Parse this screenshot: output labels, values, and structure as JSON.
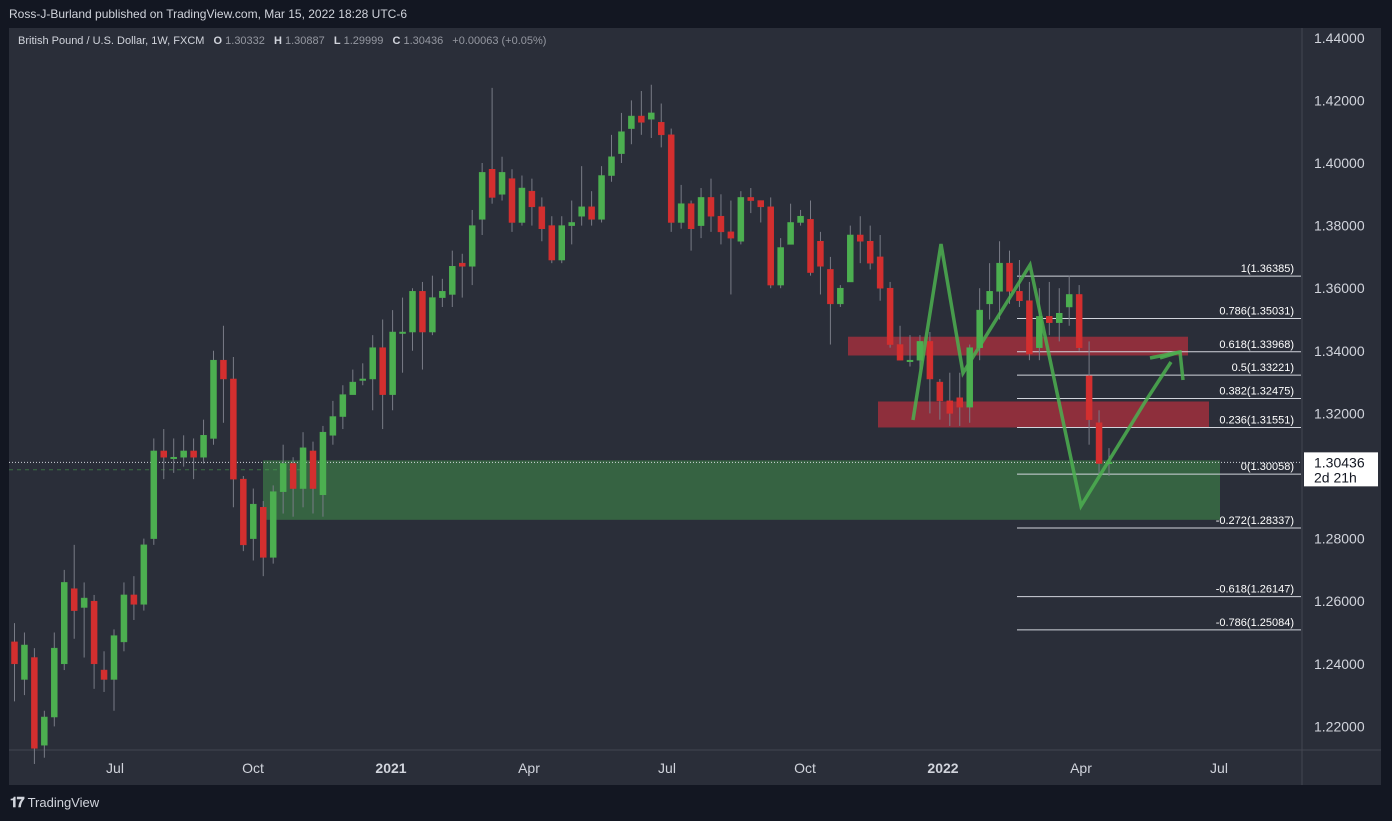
{
  "header": {
    "published": "Ross-J-Burland published on TradingView.com, Mar 15, 2022 18:28 UTC-6"
  },
  "legend": {
    "symbol": "British Pound / U.S. Dollar, 1W, FXCM",
    "o_label": "O",
    "o": "1.30332",
    "h_label": "H",
    "h": "1.30887",
    "l_label": "L",
    "l": "1.29999",
    "c_label": "C",
    "c": "1.30436",
    "change": "+0.00063 (+0.05%)"
  },
  "price_tag": {
    "value": "1.30436",
    "countdown": "2d 21h",
    "level": "1.30000"
  },
  "footer": {
    "brand": "TradingView"
  },
  "colors": {
    "up": "#4caf50",
    "down": "#d32f2f",
    "bg": "#2a2e39",
    "outer": "#131722",
    "arrow": "#4caf50",
    "zone_red": "#e0313f",
    "zone_green": "#3f8f4a"
  },
  "chart_data": {
    "type": "candlestick",
    "ylim": [
      1.21,
      1.445
    ],
    "y_ticks": [
      "1.22000",
      "1.24000",
      "1.26000",
      "1.28000",
      "1.30000",
      "1.32000",
      "1.34000",
      "1.36000",
      "1.38000",
      "1.40000",
      "1.42000",
      "1.44000"
    ],
    "x_ticks": [
      "Jul",
      "Oct",
      "2021",
      "Apr",
      "Jul",
      "Oct",
      "2022",
      "Apr",
      "Jul"
    ],
    "fib_levels": [
      {
        "label": "1(1.36385)",
        "value": 1.36385
      },
      {
        "label": "0.786(1.35031)",
        "value": 1.35031
      },
      {
        "label": "0.618(1.33968)",
        "value": 1.33968
      },
      {
        "label": "0.5(1.33221)",
        "value": 1.33221
      },
      {
        "label": "0.382(1.32475)",
        "value": 1.32475
      },
      {
        "label": "0.236(1.31551)",
        "value": 1.31551
      },
      {
        "label": "0(1.30058)",
        "value": 1.30058
      },
      {
        "label": "-0.272(1.28337)",
        "value": 1.28337
      },
      {
        "label": "-0.618(1.26147)",
        "value": 1.26147
      },
      {
        "label": "-0.786(1.25084)",
        "value": 1.25084
      }
    ],
    "zones": [
      {
        "name": "upper-resistance",
        "from": 1.3385,
        "to": 1.3445,
        "color": "red"
      },
      {
        "name": "lower-resistance",
        "from": 1.3155,
        "to": 1.3238,
        "color": "red"
      },
      {
        "name": "support",
        "from": 1.286,
        "to": 1.305,
        "color": "green"
      }
    ],
    "candles": [
      [
        1.247,
        1.24,
        1.228,
        1.253
      ],
      [
        1.235,
        1.246,
        1.23,
        1.25
      ],
      [
        1.242,
        1.213,
        1.208,
        1.245
      ],
      [
        1.214,
        1.223,
        1.21,
        1.225
      ],
      [
        1.223,
        1.245,
        1.22,
        1.25
      ],
      [
        1.24,
        1.266,
        1.238,
        1.27
      ],
      [
        1.264,
        1.257,
        1.248,
        1.278
      ],
      [
        1.258,
        1.261,
        1.242,
        1.266
      ],
      [
        1.26,
        1.24,
        1.232,
        1.262
      ],
      [
        1.238,
        1.235,
        1.231,
        1.244
      ],
      [
        1.235,
        1.249,
        1.225,
        1.251
      ],
      [
        1.247,
        1.262,
        1.244,
        1.266
      ],
      [
        1.262,
        1.259,
        1.254,
        1.268
      ],
      [
        1.259,
        1.278,
        1.257,
        1.28
      ],
      [
        1.28,
        1.308,
        1.278,
        1.312
      ],
      [
        1.308,
        1.306,
        1.299,
        1.315
      ],
      [
        1.306,
        1.306,
        1.301,
        1.312
      ],
      [
        1.306,
        1.308,
        1.303,
        1.313
      ],
      [
        1.308,
        1.306,
        1.299,
        1.312
      ],
      [
        1.306,
        1.313,
        1.304,
        1.318
      ],
      [
        1.312,
        1.337,
        1.31,
        1.34
      ],
      [
        1.337,
        1.331,
        1.317,
        1.348
      ],
      [
        1.331,
        1.299,
        1.29,
        1.338
      ],
      [
        1.299,
        1.278,
        1.276,
        1.3
      ],
      [
        1.28,
        1.291,
        1.273,
        1.296
      ],
      [
        1.29,
        1.274,
        1.268,
        1.292
      ],
      [
        1.274,
        1.295,
        1.272,
        1.297
      ],
      [
        1.295,
        1.304,
        1.288,
        1.31
      ],
      [
        1.304,
        1.296,
        1.287,
        1.306
      ],
      [
        1.296,
        1.309,
        1.29,
        1.314
      ],
      [
        1.308,
        1.296,
        1.288,
        1.311
      ],
      [
        1.294,
        1.314,
        1.287,
        1.316
      ],
      [
        1.313,
        1.319,
        1.31,
        1.324
      ],
      [
        1.319,
        1.326,
        1.315,
        1.329
      ],
      [
        1.326,
        1.33,
        1.326,
        1.334
      ],
      [
        1.331,
        1.331,
        1.329,
        1.336
      ],
      [
        1.331,
        1.341,
        1.321,
        1.345
      ],
      [
        1.341,
        1.326,
        1.315,
        1.35
      ],
      [
        1.326,
        1.346,
        1.321,
        1.353
      ],
      [
        1.346,
        1.346,
        1.333,
        1.357
      ],
      [
        1.346,
        1.359,
        1.34,
        1.36
      ],
      [
        1.359,
        1.346,
        1.334,
        1.362
      ],
      [
        1.346,
        1.357,
        1.345,
        1.364
      ],
      [
        1.357,
        1.359,
        1.354,
        1.363
      ],
      [
        1.358,
        1.367,
        1.354,
        1.372
      ],
      [
        1.368,
        1.367,
        1.357,
        1.371
      ],
      [
        1.367,
        1.38,
        1.361,
        1.385
      ],
      [
        1.382,
        1.397,
        1.377,
        1.4
      ],
      [
        1.398,
        1.389,
        1.387,
        1.424
      ],
      [
        1.39,
        1.397,
        1.388,
        1.402
      ],
      [
        1.395,
        1.381,
        1.378,
        1.398
      ],
      [
        1.381,
        1.392,
        1.38,
        1.396
      ],
      [
        1.391,
        1.386,
        1.38,
        1.395
      ],
      [
        1.386,
        1.379,
        1.375,
        1.389
      ],
      [
        1.38,
        1.369,
        1.368,
        1.383
      ],
      [
        1.369,
        1.38,
        1.368,
        1.383
      ],
      [
        1.38,
        1.381,
        1.374,
        1.388
      ],
      [
        1.383,
        1.386,
        1.38,
        1.399
      ],
      [
        1.386,
        1.382,
        1.38,
        1.391
      ],
      [
        1.382,
        1.396,
        1.381,
        1.399
      ],
      [
        1.396,
        1.402,
        1.394,
        1.409
      ],
      [
        1.403,
        1.41,
        1.4,
        1.416
      ],
      [
        1.411,
        1.415,
        1.406,
        1.42
      ],
      [
        1.415,
        1.413,
        1.409,
        1.423
      ],
      [
        1.414,
        1.416,
        1.408,
        1.425
      ],
      [
        1.413,
        1.409,
        1.405,
        1.419
      ],
      [
        1.409,
        1.381,
        1.378,
        1.411
      ],
      [
        1.381,
        1.387,
        1.379,
        1.393
      ],
      [
        1.387,
        1.379,
        1.372,
        1.388
      ],
      [
        1.38,
        1.389,
        1.376,
        1.392
      ],
      [
        1.389,
        1.383,
        1.378,
        1.395
      ],
      [
        1.383,
        1.378,
        1.374,
        1.39
      ],
      [
        1.378,
        1.376,
        1.358,
        1.388
      ],
      [
        1.375,
        1.389,
        1.374,
        1.391
      ],
      [
        1.389,
        1.388,
        1.384,
        1.392
      ],
      [
        1.388,
        1.386,
        1.381,
        1.388
      ],
      [
        1.386,
        1.361,
        1.36,
        1.389
      ],
      [
        1.361,
        1.373,
        1.36,
        1.376
      ],
      [
        1.374,
        1.381,
        1.374,
        1.387
      ],
      [
        1.381,
        1.383,
        1.38,
        1.385
      ],
      [
        1.382,
        1.365,
        1.364,
        1.388
      ],
      [
        1.375,
        1.367,
        1.358,
        1.378
      ],
      [
        1.366,
        1.355,
        1.342,
        1.37
      ],
      [
        1.355,
        1.36,
        1.354,
        1.361
      ],
      [
        1.362,
        1.377,
        1.362,
        1.38
      ],
      [
        1.377,
        1.375,
        1.368,
        1.383
      ],
      [
        1.375,
        1.368,
        1.366,
        1.38
      ],
      [
        1.37,
        1.36,
        1.356,
        1.377
      ],
      [
        1.36,
        1.342,
        1.341,
        1.362
      ],
      [
        1.342,
        1.337,
        1.337,
        1.348
      ],
      [
        1.337,
        1.337,
        1.335,
        1.345
      ],
      [
        1.337,
        1.343,
        1.334,
        1.345
      ],
      [
        1.343,
        1.331,
        1.32,
        1.346
      ],
      [
        1.33,
        1.324,
        1.318,
        1.331
      ],
      [
        1.324,
        1.32,
        1.316,
        1.333
      ],
      [
        1.325,
        1.322,
        1.316,
        1.333
      ],
      [
        1.322,
        1.341,
        1.317,
        1.342
      ],
      [
        1.341,
        1.353,
        1.337,
        1.36
      ],
      [
        1.355,
        1.359,
        1.35,
        1.368
      ],
      [
        1.359,
        1.368,
        1.35,
        1.375
      ],
      [
        1.368,
        1.359,
        1.355,
        1.372
      ],
      [
        1.359,
        1.356,
        1.354,
        1.369
      ],
      [
        1.356,
        1.339,
        1.337,
        1.362
      ],
      [
        1.341,
        1.351,
        1.337,
        1.36
      ],
      [
        1.351,
        1.349,
        1.345,
        1.362
      ],
      [
        1.349,
        1.352,
        1.343,
        1.36
      ],
      [
        1.354,
        1.358,
        1.348,
        1.364
      ],
      [
        1.358,
        1.341,
        1.34,
        1.361
      ],
      [
        1.332,
        1.318,
        1.31,
        1.343
      ],
      [
        1.317,
        1.304,
        1.3,
        1.321
      ],
      [
        1.304,
        1.3044,
        1.3,
        1.3089
      ]
    ]
  }
}
